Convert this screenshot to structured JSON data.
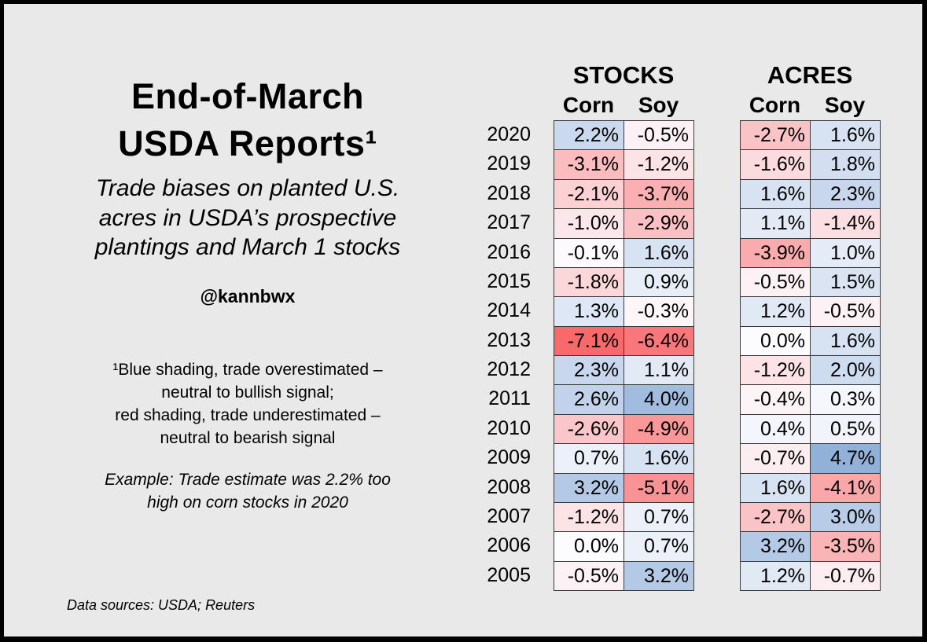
{
  "canvas": {
    "background": "#e9e9e9",
    "frame_color": "#000000",
    "cell_border_color": "#3b3b3b",
    "text_color": "#000000"
  },
  "left_panel": {
    "title_lines": [
      "End-of-March",
      "USDA Reports¹"
    ],
    "subtitle_lines": [
      "Trade biases on planted U.S.",
      "acres in USDA’s prospective",
      "plantings and March 1 stocks"
    ],
    "handle": "@kannbwx",
    "footnote_lines": [
      "¹Blue shading, trade overestimated –",
      "neutral to bullish signal;",
      "red shading, trade underestimated –",
      "neutral to bearish signal"
    ],
    "example_lines": [
      "Example: Trade estimate was 2.2% too",
      "high on corn stocks in 2020"
    ],
    "source": "Data sources: USDA; Reuters"
  },
  "chart_data": {
    "type": "heatmap",
    "title": "End-of-March USDA Reports¹",
    "subtitle": "Trade biases on planted U.S. acres in USDA’s prospective plantings and March 1 stocks",
    "unit": "%",
    "groups": [
      {
        "label": "STOCKS",
        "columns": [
          "Corn",
          "Soy"
        ]
      },
      {
        "label": "ACRES",
        "columns": [
          "Corn",
          "Soy"
        ]
      }
    ],
    "rows": [
      {
        "year": "2020",
        "stocks_corn": 2.2,
        "stocks_soy": -0.5,
        "acres_corn": -2.7,
        "acres_soy": 1.6
      },
      {
        "year": "2019",
        "stocks_corn": -3.1,
        "stocks_soy": -1.2,
        "acres_corn": -1.6,
        "acres_soy": 1.8
      },
      {
        "year": "2018",
        "stocks_corn": -2.1,
        "stocks_soy": -3.7,
        "acres_corn": 1.6,
        "acres_soy": 2.3
      },
      {
        "year": "2017",
        "stocks_corn": -1.0,
        "stocks_soy": -2.9,
        "acres_corn": 1.1,
        "acres_soy": -1.4
      },
      {
        "year": "2016",
        "stocks_corn": -0.1,
        "stocks_soy": 1.6,
        "acres_corn": -3.9,
        "acres_soy": 1.0
      },
      {
        "year": "2015",
        "stocks_corn": -1.8,
        "stocks_soy": 0.9,
        "acres_corn": -0.5,
        "acres_soy": 1.5
      },
      {
        "year": "2014",
        "stocks_corn": 1.3,
        "stocks_soy": -0.3,
        "acres_corn": 1.2,
        "acres_soy": -0.5
      },
      {
        "year": "2013",
        "stocks_corn": -7.1,
        "stocks_soy": -6.4,
        "acres_corn": 0.0,
        "acres_soy": 1.6
      },
      {
        "year": "2012",
        "stocks_corn": 2.3,
        "stocks_soy": 1.1,
        "acres_corn": -1.2,
        "acres_soy": 2.0
      },
      {
        "year": "2011",
        "stocks_corn": 2.6,
        "stocks_soy": 4.0,
        "acres_corn": -0.4,
        "acres_soy": 0.3
      },
      {
        "year": "2010",
        "stocks_corn": -2.6,
        "stocks_soy": -4.9,
        "acres_corn": 0.4,
        "acres_soy": 0.5
      },
      {
        "year": "2009",
        "stocks_corn": 0.7,
        "stocks_soy": 1.6,
        "acres_corn": -0.7,
        "acres_soy": 4.7
      },
      {
        "year": "2008",
        "stocks_corn": 3.2,
        "stocks_soy": -5.1,
        "acres_corn": 1.6,
        "acres_soy": -4.1
      },
      {
        "year": "2007",
        "stocks_corn": -1.2,
        "stocks_soy": 0.7,
        "acres_corn": -2.7,
        "acres_soy": 3.0
      },
      {
        "year": "2006",
        "stocks_corn": 0.0,
        "stocks_soy": 0.7,
        "acres_corn": 3.2,
        "acres_soy": -3.5
      },
      {
        "year": "2005",
        "stocks_corn": -0.5,
        "stocks_soy": 3.2,
        "acres_corn": 1.2,
        "acres_soy": -0.7
      }
    ],
    "color_scale": {
      "negative_color": "#F8696B",
      "midpoint_color": "#FCFCFF",
      "positive_color": "#5A8AC6",
      "abs_max": 7.1,
      "blue_meaning": "trade overestimated – neutral to bullish signal",
      "red_meaning": "trade underestimated – neutral to bearish signal"
    }
  }
}
